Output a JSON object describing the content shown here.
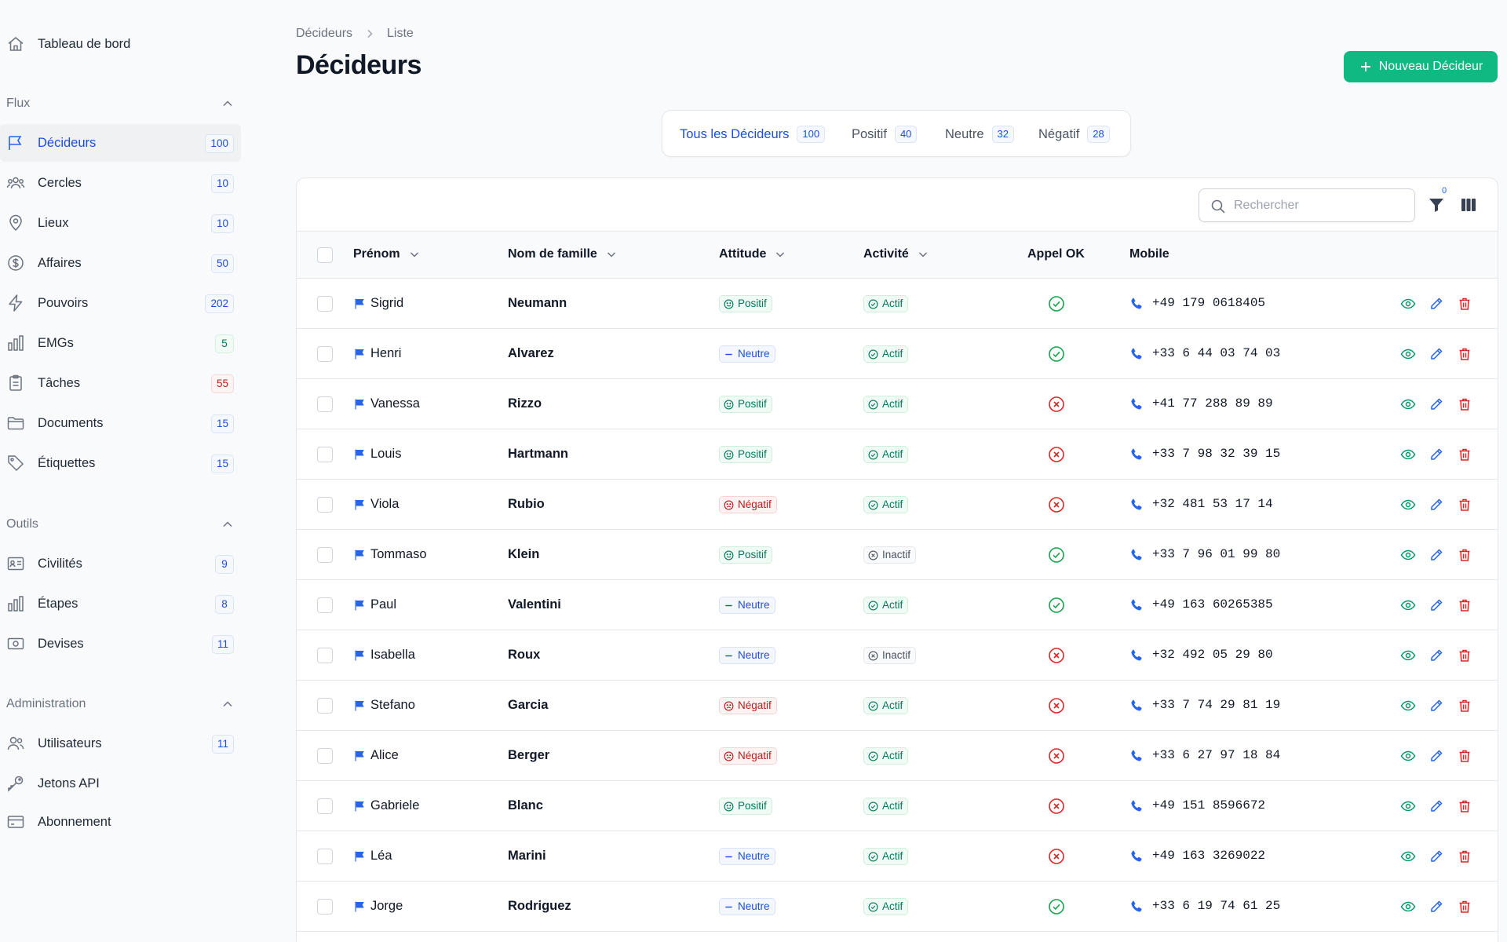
{
  "sidebar": {
    "dashboard": "Tableau de bord",
    "sections": [
      {
        "label": "Flux",
        "items": [
          {
            "label": "Décideurs",
            "count": "100",
            "icon": "flag-icon",
            "active": true
          },
          {
            "label": "Cercles",
            "count": "10",
            "icon": "users-group-icon"
          },
          {
            "label": "Lieux",
            "count": "10",
            "icon": "map-pin-icon"
          },
          {
            "label": "Affaires",
            "count": "50",
            "icon": "dollar-icon"
          },
          {
            "label": "Pouvoirs",
            "count": "202",
            "icon": "bolt-icon"
          },
          {
            "label": "EMGs",
            "count": "5",
            "icon": "bar-chart-icon"
          },
          {
            "label": "Tâches",
            "count": "55",
            "icon": "clipboard-icon"
          },
          {
            "label": "Documents",
            "count": "15",
            "icon": "folder-icon"
          },
          {
            "label": "Étiquettes",
            "count": "15",
            "icon": "tag-icon"
          }
        ]
      },
      {
        "label": "Outils",
        "items": [
          {
            "label": "Civilités",
            "count": "9",
            "icon": "id-card-icon"
          },
          {
            "label": "Étapes",
            "count": "8",
            "icon": "bar-chart-icon"
          },
          {
            "label": "Devises",
            "count": "11",
            "icon": "banknote-icon"
          }
        ]
      },
      {
        "label": "Administration",
        "items": [
          {
            "label": "Utilisateurs",
            "count": "11",
            "icon": "users-icon"
          },
          {
            "label": "Jetons API",
            "count": "",
            "icon": "key-icon"
          },
          {
            "label": "Abonnement",
            "count": "",
            "icon": "credit-card-icon"
          }
        ]
      }
    ]
  },
  "header": {
    "breadcrumb": [
      "Décideurs",
      "Liste"
    ],
    "title": "Décideurs",
    "new_button": "Nouveau Décideur"
  },
  "tabs": [
    {
      "label": "Tous les Décideurs",
      "count": "100"
    },
    {
      "label": "Positif",
      "count": "40"
    },
    {
      "label": "Neutre",
      "count": "32"
    },
    {
      "label": "Négatif",
      "count": "28"
    }
  ],
  "toolbar": {
    "search_placeholder": "Rechercher",
    "filter_count": "0"
  },
  "table": {
    "columns": [
      "Prénom",
      "Nom de famille",
      "Attitude",
      "Activité",
      "Appel OK",
      "Mobile"
    ],
    "rows": [
      {
        "first": "Sigrid",
        "last": "Neumann",
        "attitude": "Positif",
        "activite": "Actif",
        "appel": true,
        "mobile": "+49 179 0618405"
      },
      {
        "first": "Henri",
        "last": "Alvarez",
        "attitude": "Neutre",
        "activite": "Actif",
        "appel": true,
        "mobile": "+33 6 44 03 74 03"
      },
      {
        "first": "Vanessa",
        "last": "Rizzo",
        "attitude": "Positif",
        "activite": "Actif",
        "appel": false,
        "mobile": "+41 77 288 89 89"
      },
      {
        "first": "Louis",
        "last": "Hartmann",
        "attitude": "Positif",
        "activite": "Actif",
        "appel": false,
        "mobile": "+33 7 98 32 39 15"
      },
      {
        "first": "Viola",
        "last": "Rubio",
        "attitude": "Négatif",
        "activite": "Actif",
        "appel": false,
        "mobile": "+32 481 53 17 14"
      },
      {
        "first": "Tommaso",
        "last": "Klein",
        "attitude": "Positif",
        "activite": "Inactif",
        "appel": true,
        "mobile": "+33 7 96 01 99 80"
      },
      {
        "first": "Paul",
        "last": "Valentini",
        "attitude": "Neutre",
        "activite": "Actif",
        "appel": true,
        "mobile": "+49 163 60265385"
      },
      {
        "first": "Isabella",
        "last": "Roux",
        "attitude": "Neutre",
        "activite": "Inactif",
        "appel": false,
        "mobile": "+32 492 05 29 80"
      },
      {
        "first": "Stefano",
        "last": "Garcia",
        "attitude": "Négatif",
        "activite": "Actif",
        "appel": false,
        "mobile": "+33 7 74 29 81 19"
      },
      {
        "first": "Alice",
        "last": "Berger",
        "attitude": "Négatif",
        "activite": "Actif",
        "appel": false,
        "mobile": "+33 6 27 97 18 84"
      },
      {
        "first": "Gabriele",
        "last": "Blanc",
        "attitude": "Positif",
        "activite": "Actif",
        "appel": false,
        "mobile": "+49 151 8596672"
      },
      {
        "first": "Léa",
        "last": "Marini",
        "attitude": "Neutre",
        "activite": "Actif",
        "appel": false,
        "mobile": "+49 163 3269022"
      },
      {
        "first": "Jorge",
        "last": "Rodriguez",
        "attitude": "Neutre",
        "activite": "Actif",
        "appel": true,
        "mobile": "+33 6 19 74 61 25"
      }
    ]
  },
  "colors": {
    "accent": "#2563eb",
    "primary_button": "#10b981",
    "positive": "#047857",
    "negative": "#dc2626"
  }
}
